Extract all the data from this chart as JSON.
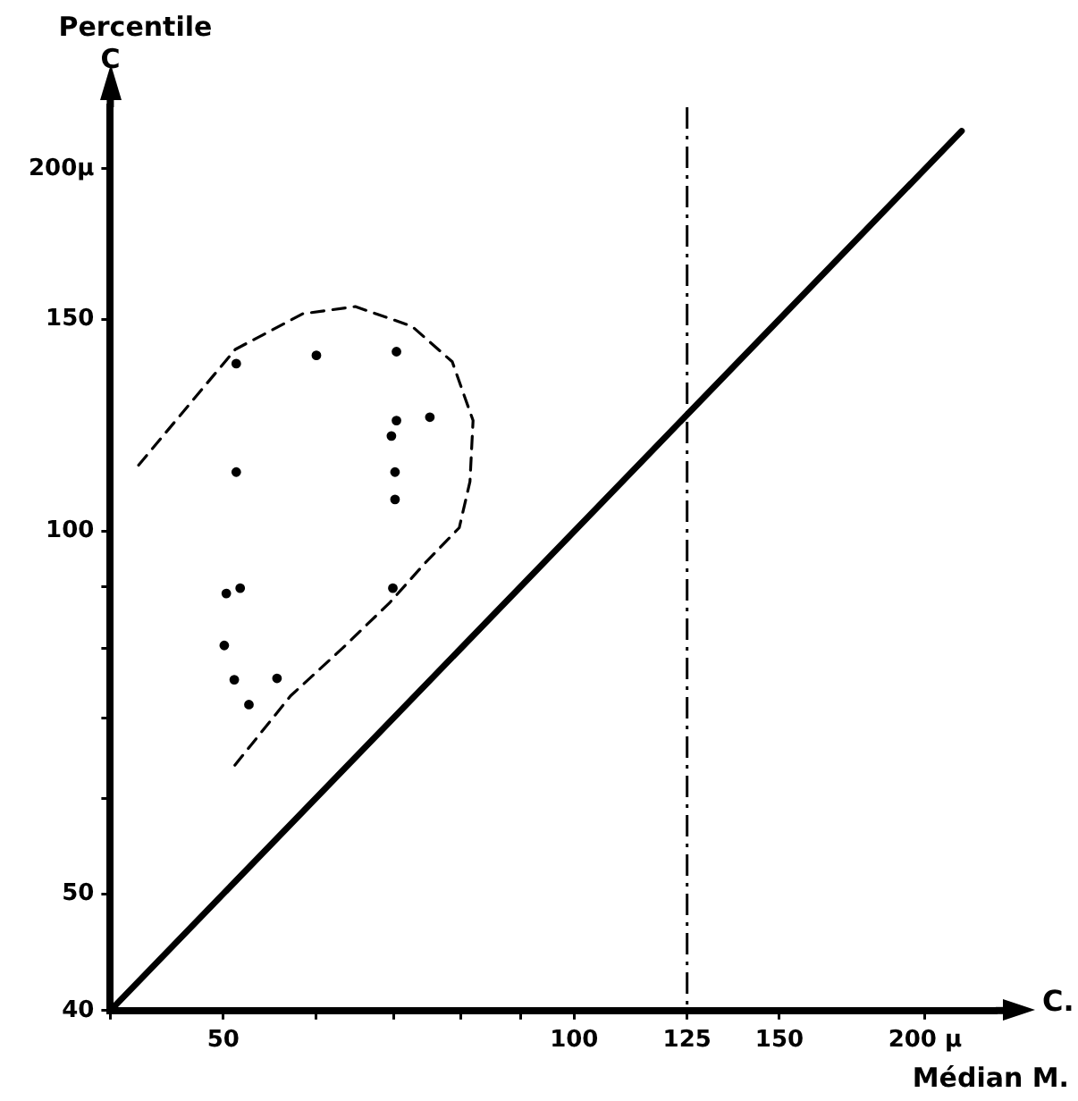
{
  "chart_data": {
    "type": "scatter",
    "xlabel": "Médian M.",
    "ylabel": "Percentile C",
    "annotations": [
      "C."
    ],
    "log": "xy",
    "grid": false,
    "legend": false,
    "xlim": [
      40,
      230
    ],
    "ylim": [
      40,
      225
    ],
    "xticks": [
      {
        "value": 40,
        "label": null
      },
      50,
      {
        "value": 60,
        "label": null
      },
      {
        "value": 70,
        "label": null
      },
      {
        "value": 80,
        "label": null
      },
      {
        "value": 90,
        "label": null
      },
      100,
      125,
      150,
      {
        "value": 200,
        "label": "200 µ"
      }
    ],
    "yticks": [
      40,
      50,
      {
        "value": 60,
        "label": null
      },
      {
        "value": 70,
        "label": null
      },
      {
        "value": 80,
        "label": null
      },
      {
        "value": 90,
        "label": null
      },
      100,
      150,
      {
        "value": 200,
        "label": "200µ"
      }
    ],
    "ref_lines": [
      {
        "axis": "x",
        "value": 125,
        "color": "#000000",
        "line_style": "dashdot"
      }
    ],
    "series": [
      {
        "color": "#000000",
        "marker": "circle",
        "x": [
          51.3,
          60.1,
          70.4,
          70.4,
          75.2,
          69.7,
          51.3,
          70.2,
          70.2,
          50.3,
          51.7,
          69.9,
          50.1,
          51.1,
          55.6,
          52.6
        ],
        "values": [
          137.8,
          140,
          141,
          123.6,
          124.4,
          120,
          112,
          112,
          106.3,
          88.8,
          89.7,
          89.7,
          80.4,
          75.3,
          75.5,
          71.8
        ]
      },
      {
        "type": "line",
        "color": "#000000",
        "marker": "none",
        "line_style": "solid",
        "x": [
          40,
          215
        ],
        "values": [
          40,
          215
        ]
      },
      {
        "type": "line",
        "color": "#000000",
        "marker": "none",
        "line_style": "dashed",
        "x": [
          42.3,
          51.2,
          58.5,
          64.9,
          72.6,
          78.6,
          81.9,
          81.4,
          79.7,
          74.4,
          69.5,
          63.3,
          57.1,
          51
        ],
        "values": [
          113.5,
          141.6,
          151.6,
          153.7,
          148,
          138.3,
          123.6,
          110,
          100.7,
          94,
          87.3,
          80,
          73,
          63.7
        ]
      }
    ]
  }
}
